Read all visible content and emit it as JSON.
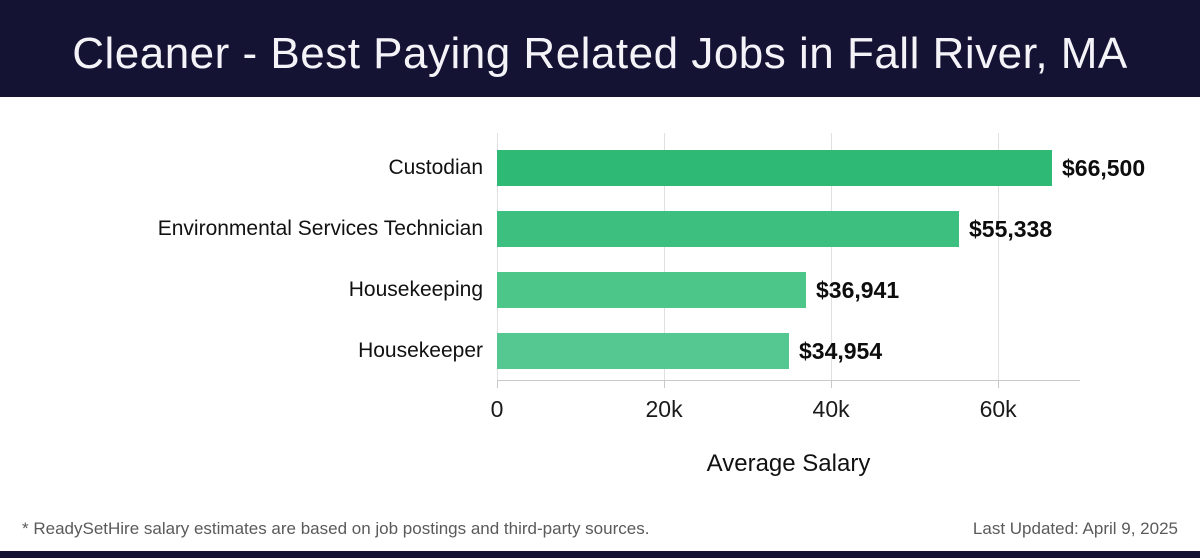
{
  "header": {
    "title": "Cleaner - Best Paying Related Jobs in Fall River, MA"
  },
  "chart_data": {
    "type": "bar",
    "orientation": "horizontal",
    "title": "Cleaner - Best Paying Related Jobs in Fall River, MA",
    "categories": [
      "Custodian",
      "Environmental Services Technician",
      "Housekeeping",
      "Housekeeper"
    ],
    "values": [
      66500,
      55338,
      36941,
      34954
    ],
    "value_labels": [
      "$66,500",
      "$55,338",
      "$36,941",
      "$34,954"
    ],
    "bar_colors": [
      "#2eba74",
      "#3dc07f",
      "#4cc689",
      "#55c891"
    ],
    "xlabel": "Average Salary",
    "ylabel": "",
    "xlim": [
      0,
      69800
    ],
    "xticks": [
      {
        "value": 0,
        "label": "0"
      },
      {
        "value": 20000,
        "label": "20k"
      },
      {
        "value": 40000,
        "label": "40k"
      },
      {
        "value": 60000,
        "label": "60k"
      }
    ],
    "grid": true,
    "legend_position": "none"
  },
  "footer": {
    "disclaimer": "* ReadySetHire salary estimates are based on job postings and third-party sources.",
    "last_updated": "Last Updated: April 9, 2025"
  },
  "colors": {
    "header_bg": "#151334",
    "title_text": "#f4f3f8",
    "gridline": "#e0e0e0",
    "axis_line": "#c9c9c9",
    "label_text": "#111111",
    "footer_text": "#5a5a5a"
  }
}
